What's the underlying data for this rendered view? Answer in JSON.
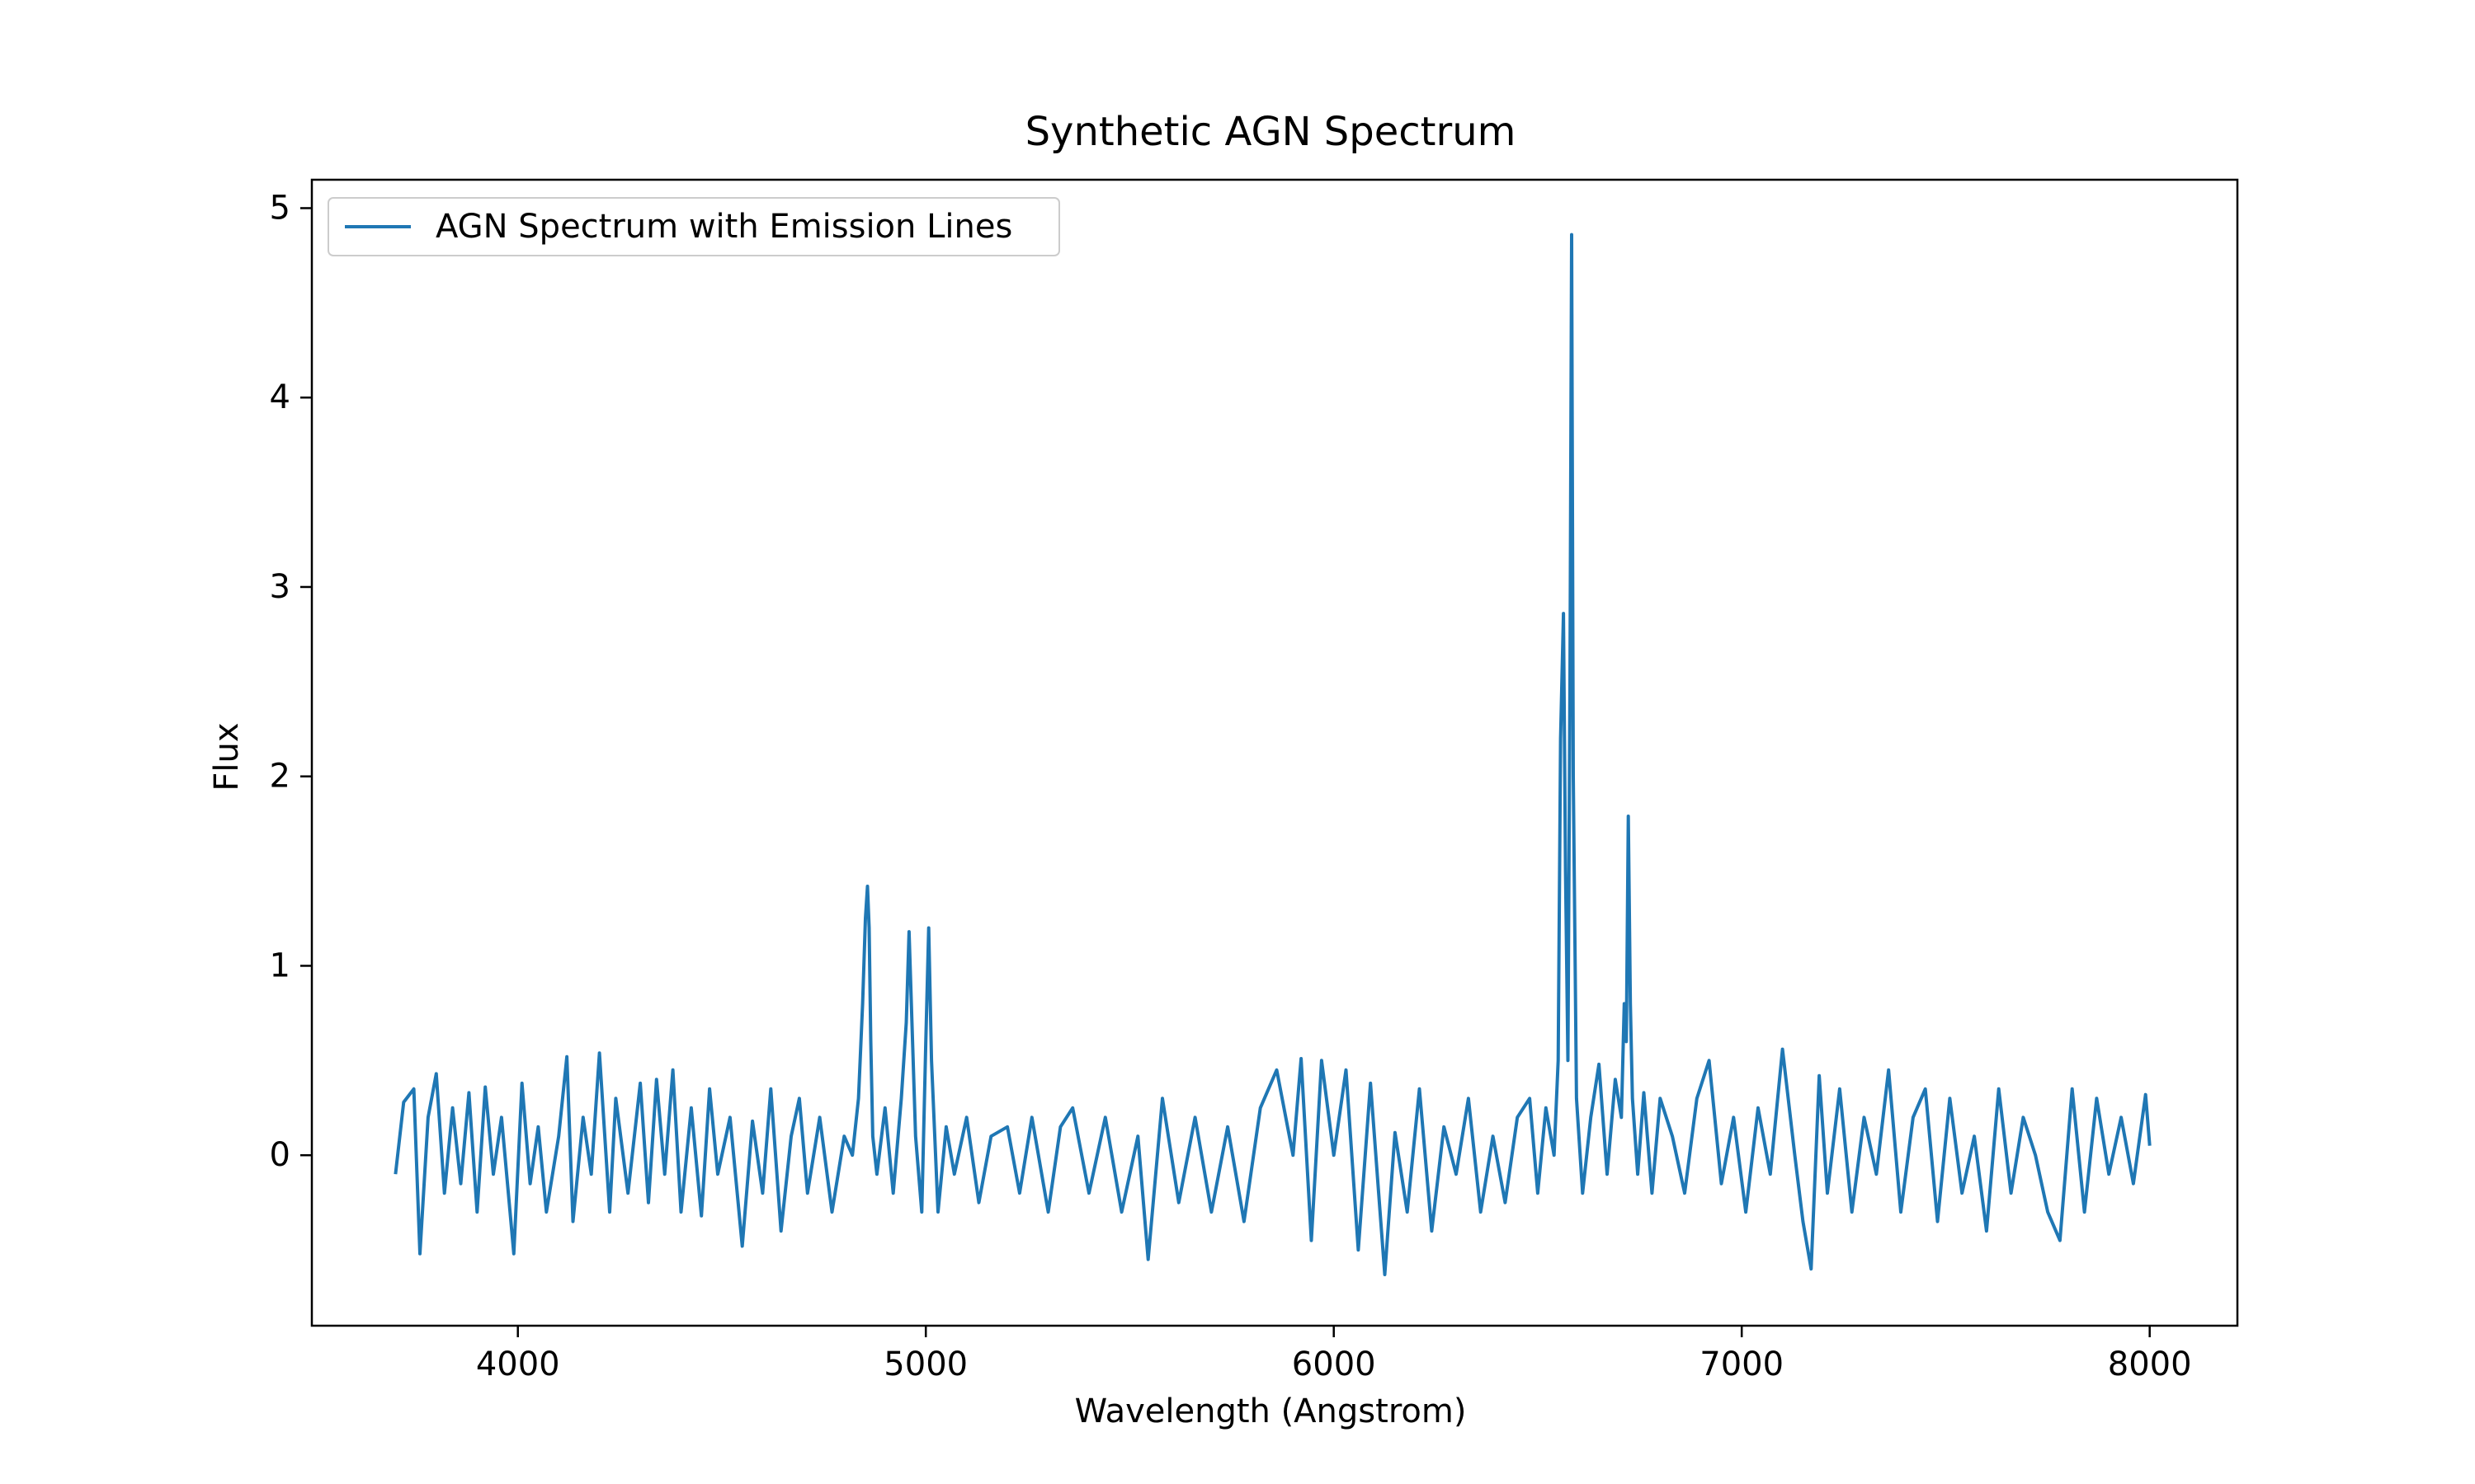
{
  "chart_data": {
    "type": "line",
    "title": "Synthetic AGN Spectrum",
    "xlabel": "Wavelength (Angstrom)",
    "ylabel": "Flux",
    "xlim": [
      3495,
      8215
    ],
    "ylim": [
      -0.9,
      5.15
    ],
    "xticks": [
      4000,
      5000,
      6000,
      7000,
      8000
    ],
    "yticks": [
      0,
      1,
      2,
      3,
      4,
      5
    ],
    "grid": false,
    "legend": {
      "position": "top-left",
      "entries": [
        "AGN Spectrum with Emission Lines"
      ]
    },
    "series": [
      {
        "name": "AGN Spectrum with Emission Lines",
        "color": "#1f77b4",
        "x": [
          3700,
          3720,
          3745,
          3760,
          3780,
          3800,
          3820,
          3840,
          3860,
          3880,
          3900,
          3920,
          3940,
          3960,
          3990,
          4010,
          4030,
          4050,
          4070,
          4100,
          4120,
          4135,
          4160,
          4180,
          4200,
          4225,
          4240,
          4270,
          4300,
          4320,
          4340,
          4360,
          4380,
          4400,
          4425,
          4450,
          4470,
          4490,
          4520,
          4550,
          4575,
          4600,
          4620,
          4645,
          4670,
          4690,
          4710,
          4740,
          4770,
          4800,
          4820,
          4835,
          4845,
          4852,
          4857,
          4861,
          4865,
          4870,
          4880,
          4900,
          4920,
          4940,
          4952,
          4959,
          4966,
          4975,
          4990,
          5000,
          5007,
          5014,
          5030,
          5050,
          5070,
          5100,
          5130,
          5160,
          5200,
          5230,
          5260,
          5300,
          5330,
          5360,
          5400,
          5440,
          5480,
          5520,
          5545,
          5580,
          5620,
          5660,
          5700,
          5740,
          5780,
          5820,
          5860,
          5900,
          5920,
          5945,
          5970,
          6000,
          6030,
          6060,
          6090,
          6110,
          6125,
          6150,
          6180,
          6210,
          6240,
          6270,
          6300,
          6330,
          6360,
          6390,
          6420,
          6450,
          6480,
          6500,
          6520,
          6540,
          6550,
          6556,
          6563,
          6568,
          6574,
          6579,
          6583,
          6587,
          6595,
          6610,
          6630,
          6650,
          6670,
          6690,
          6705,
          6712,
          6717,
          6722,
          6727,
          6732,
          6745,
          6760,
          6780,
          6800,
          6830,
          6860,
          6890,
          6920,
          6950,
          6980,
          7010,
          7040,
          7070,
          7100,
          7130,
          7150,
          7170,
          7190,
          7210,
          7240,
          7270,
          7300,
          7330,
          7360,
          7390,
          7420,
          7450,
          7480,
          7510,
          7540,
          7570,
          7600,
          7630,
          7660,
          7690,
          7720,
          7750,
          7780,
          7810,
          7840,
          7870,
          7900,
          7930,
          7960,
          7990,
          8000
        ],
        "y": [
          -0.1,
          0.28,
          0.35,
          -0.52,
          0.2,
          0.43,
          -0.2,
          0.25,
          -0.15,
          0.33,
          -0.3,
          0.36,
          -0.1,
          0.2,
          -0.52,
          0.38,
          -0.15,
          0.15,
          -0.3,
          0.1,
          0.52,
          -0.35,
          0.2,
          -0.1,
          0.54,
          -0.3,
          0.3,
          -0.2,
          0.38,
          -0.25,
          0.4,
          -0.1,
          0.45,
          -0.3,
          0.25,
          -0.32,
          0.35,
          -0.1,
          0.2,
          -0.48,
          0.18,
          -0.2,
          0.35,
          -0.4,
          0.1,
          0.3,
          -0.2,
          0.2,
          -0.3,
          0.1,
          0.0,
          0.3,
          0.8,
          1.25,
          1.42,
          1.2,
          0.6,
          0.1,
          -0.1,
          0.25,
          -0.2,
          0.3,
          0.7,
          1.18,
          0.7,
          0.1,
          -0.3,
          0.6,
          1.2,
          0.5,
          -0.3,
          0.15,
          -0.1,
          0.2,
          -0.25,
          0.1,
          0.15,
          -0.2,
          0.2,
          -0.3,
          0.15,
          0.25,
          -0.2,
          0.2,
          -0.3,
          0.1,
          -0.55,
          0.3,
          -0.25,
          0.2,
          -0.3,
          0.15,
          -0.35,
          0.25,
          0.45,
          0.0,
          0.51,
          -0.45,
          0.5,
          0.0,
          0.45,
          -0.5,
          0.38,
          -0.2,
          -0.63,
          0.12,
          -0.3,
          0.35,
          -0.4,
          0.15,
          -0.1,
          0.3,
          -0.3,
          0.1,
          -0.25,
          0.2,
          0.3,
          -0.2,
          0.25,
          0.0,
          0.5,
          2.2,
          2.86,
          1.5,
          0.5,
          2.5,
          4.86,
          2.0,
          0.3,
          -0.2,
          0.2,
          0.48,
          -0.1,
          0.4,
          0.2,
          0.8,
          0.6,
          1.79,
          0.8,
          0.3,
          -0.1,
          0.33,
          -0.2,
          0.3,
          0.1,
          -0.2,
          0.3,
          0.5,
          -0.15,
          0.2,
          -0.3,
          0.25,
          -0.1,
          0.56,
          0.0,
          -0.35,
          -0.6,
          0.42,
          -0.2,
          0.35,
          -0.3,
          0.2,
          -0.1,
          0.45,
          -0.3,
          0.2,
          0.35,
          -0.35,
          0.3,
          -0.2,
          0.1,
          -0.4,
          0.35,
          -0.2,
          0.2,
          0.0,
          -0.3,
          -0.45,
          0.35,
          -0.3,
          0.3,
          -0.1,
          0.2,
          -0.15,
          0.32,
          0.05
        ]
      }
    ]
  }
}
